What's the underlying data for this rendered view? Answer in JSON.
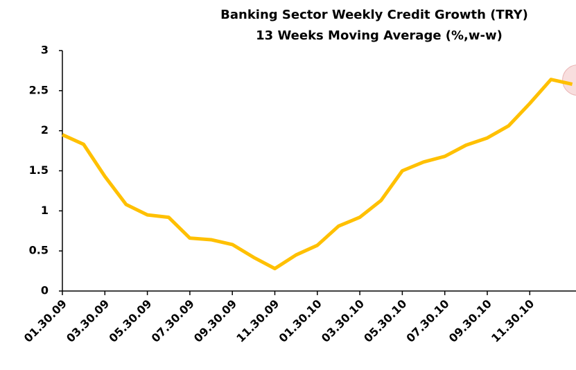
{
  "chart_data": {
    "type": "line",
    "title": "Banking Sector Weekly Credit Growth (TRY)",
    "subtitle": "13 Weeks  Moving Average (%,w-w)",
    "categories": [
      "01.30.09",
      null,
      "03.30.09",
      null,
      "05.30.09",
      null,
      "07.30.09",
      null,
      "09.30.09",
      null,
      "11.30.09",
      null,
      "01.30.10",
      null,
      "03.30.10",
      null,
      "05.30.10",
      null,
      "07.30.10",
      null,
      "09.30.10",
      null,
      "11.30.10",
      null,
      null
    ],
    "series": [
      {
        "name": "Credit Growth",
        "color": "#FFC000",
        "values": [
          1.95,
          1.83,
          1.43,
          1.08,
          0.95,
          0.92,
          0.66,
          0.64,
          0.58,
          0.42,
          0.28,
          0.45,
          0.57,
          0.81,
          0.92,
          1.13,
          1.5,
          1.61,
          1.68,
          1.82,
          1.91,
          2.06,
          2.34,
          2.64,
          2.58
        ]
      }
    ],
    "ylim": [
      0,
      3
    ],
    "yticks": [
      0,
      0.5,
      1,
      1.5,
      2,
      2.5,
      3
    ]
  }
}
